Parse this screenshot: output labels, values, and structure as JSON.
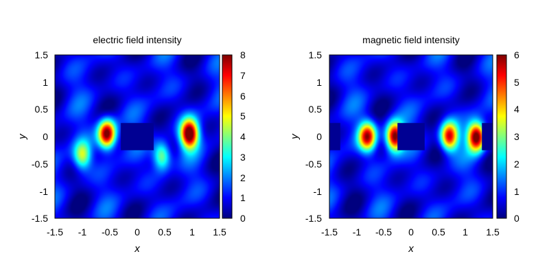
{
  "chart_data": [
    {
      "type": "heatmap",
      "title": "electric field intensity",
      "xlabel": "x",
      "ylabel": "y",
      "xlim": [
        -1.5,
        1.5
      ],
      "ylim": [
        -1.5,
        1.5
      ],
      "x_ticks": [
        "-1.5",
        "-1",
        "-0.5",
        "0",
        "0.5",
        "1",
        "1.5"
      ],
      "y_ticks": [
        "1.5",
        "1",
        "0.5",
        "0",
        "-0.5",
        "-1",
        "-1.5"
      ],
      "colorbar": {
        "range": [
          0,
          8
        ],
        "ticks": [
          "8",
          "7",
          "6",
          "5",
          "4",
          "3",
          "2",
          "1",
          "0"
        ]
      },
      "colormap": [
        "#00007f",
        "#0000ff",
        "#007fff",
        "#00ffff",
        "#7fff7f",
        "#ffff00",
        "#ff7f00",
        "#ff0000",
        "#7f0000"
      ],
      "peaks": [
        {
          "x": -0.55,
          "y": 0.05,
          "value": 8.0
        },
        {
          "x": 0.95,
          "y": 0.05,
          "value": 8.0
        },
        {
          "x": -1.0,
          "y": -0.35,
          "value": 4.0
        },
        {
          "x": 0.45,
          "y": -0.35,
          "value": 4.0
        }
      ],
      "low_regions": [
        {
          "x": [
            -0.3,
            0.3
          ],
          "y": [
            -0.25,
            0.25
          ]
        }
      ]
    },
    {
      "type": "heatmap",
      "title": "magnetic field intensity",
      "xlabel": "x",
      "ylabel": "y",
      "xlim": [
        -1.5,
        1.5
      ],
      "ylim": [
        -1.5,
        1.5
      ],
      "x_ticks": [
        "-1.5",
        "-1",
        "-0.5",
        "0",
        "0.5",
        "1",
        "1.5"
      ],
      "y_ticks": [
        "1.5",
        "1",
        "0.5",
        "0",
        "-0.5",
        "-1",
        "-1.5"
      ],
      "colorbar": {
        "range": [
          0,
          6
        ],
        "ticks": [
          "6",
          "5",
          "4",
          "3",
          "2",
          "1",
          "0"
        ]
      },
      "colormap": [
        "#00007f",
        "#0000ff",
        "#007fff",
        "#00ffff",
        "#7fff7f",
        "#ffff00",
        "#ff7f00",
        "#ff0000",
        "#7f0000"
      ],
      "peaks": [
        {
          "x": -0.8,
          "y": 0.0,
          "value": 5.0
        },
        {
          "x": 0.7,
          "y": 0.0,
          "value": 5.0
        },
        {
          "x": -0.3,
          "y": 0.0,
          "value": 5.8
        },
        {
          "x": 1.2,
          "y": 0.0,
          "value": 5.8
        }
      ],
      "low_regions": [
        {
          "x": [
            -1.5,
            -1.3
          ],
          "y": [
            -0.25,
            0.25
          ]
        },
        {
          "x": [
            -0.25,
            0.25
          ],
          "y": [
            -0.25,
            0.25
          ]
        },
        {
          "x": [
            1.3,
            1.5
          ],
          "y": [
            -0.25,
            0.25
          ]
        }
      ]
    }
  ]
}
